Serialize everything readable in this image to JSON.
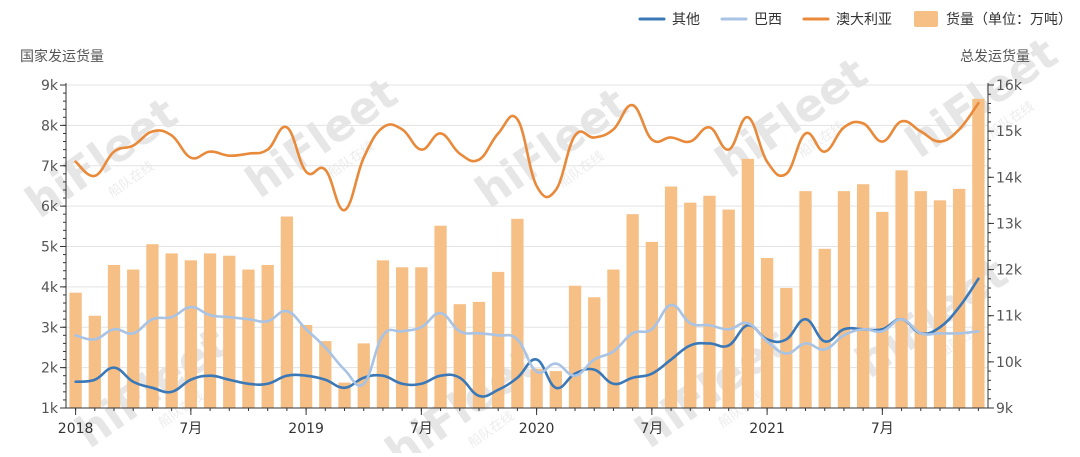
{
  "chart_data": {
    "type": "bar",
    "title": "",
    "left_axis": {
      "title": "国家发运货量",
      "range": [
        1000,
        9000
      ],
      "ticks": [
        1000,
        2000,
        3000,
        4000,
        5000,
        6000,
        7000,
        8000,
        9000
      ],
      "tick_labels": [
        "1k",
        "2k",
        "3k",
        "4k",
        "5k",
        "6k",
        "7k",
        "8k",
        "9k"
      ]
    },
    "right_axis": {
      "title": "总发运货量",
      "range": [
        9000,
        16000
      ],
      "ticks": [
        9000,
        10000,
        11000,
        12000,
        13000,
        14000,
        15000,
        16000
      ],
      "tick_labels": [
        "9k",
        "10k",
        "11k",
        "12k",
        "13k",
        "14k",
        "15k",
        "16k"
      ]
    },
    "x_axis": {
      "months": [
        "2018-01",
        "2018-02",
        "2018-03",
        "2018-04",
        "2018-05",
        "2018-06",
        "2018-07",
        "2018-08",
        "2018-09",
        "2018-10",
        "2018-11",
        "2018-12",
        "2019-01",
        "2019-02",
        "2019-03",
        "2019-04",
        "2019-05",
        "2019-06",
        "2019-07",
        "2019-08",
        "2019-09",
        "2019-10",
        "2019-11",
        "2019-12",
        "2020-01",
        "2020-02",
        "2020-03",
        "2020-04",
        "2020-05",
        "2020-06",
        "2020-07",
        "2020-08",
        "2020-09",
        "2020-10",
        "2020-11",
        "2020-12",
        "2021-01",
        "2021-02",
        "2021-03",
        "2021-04",
        "2021-05",
        "2021-06",
        "2021-07",
        "2021-08",
        "2021-09",
        "2021-10",
        "2021-11",
        "2021-12"
      ],
      "tick_labels": [
        {
          "month": "2018-01",
          "label": "2018"
        },
        {
          "month": "2018-07",
          "label": "7月"
        },
        {
          "month": "2019-01",
          "label": "2019"
        },
        {
          "month": "2019-07",
          "label": "7月"
        },
        {
          "month": "2020-01",
          "label": "2020"
        },
        {
          "month": "2020-07",
          "label": "7月"
        },
        {
          "month": "2021-01",
          "label": "2021"
        },
        {
          "month": "2021-07",
          "label": "7月"
        }
      ]
    },
    "bar_series": {
      "name": "货量（单位：万吨）",
      "axis": "right",
      "color": "#f5bf85",
      "values": [
        11500,
        11000,
        12100,
        12000,
        12550,
        12350,
        12200,
        12350,
        12300,
        12000,
        12100,
        13150,
        10800,
        10450,
        9550,
        10400,
        12200,
        12050,
        12050,
        12950,
        11250,
        11300,
        11950,
        13100,
        9850,
        9800,
        11650,
        11400,
        12000,
        13200,
        12600,
        13800,
        13450,
        13600,
        13300,
        14400,
        12250,
        11600,
        13700,
        12450,
        13700,
        13850,
        13250,
        14150,
        13700,
        13500,
        13750,
        15700
      ]
    },
    "line_series": [
      {
        "name": "其他",
        "axis": "left",
        "color": "#3a78b8",
        "values": [
          1650,
          1700,
          2000,
          1650,
          1500,
          1400,
          1700,
          1800,
          1700,
          1600,
          1600,
          1800,
          1800,
          1700,
          1500,
          1750,
          1800,
          1600,
          1600,
          1800,
          1750,
          1300,
          1450,
          1750,
          2200,
          1500,
          1850,
          1950,
          1600,
          1750,
          1850,
          2200,
          2550,
          2600,
          2550,
          3050,
          2700,
          2700,
          3200,
          2650,
          2950,
          2950,
          2950,
          3200,
          2850,
          3000,
          3500,
          4200
        ]
      },
      {
        "name": "巴西",
        "axis": "left",
        "color": "#a9c3e4",
        "values": [
          2800,
          2700,
          2950,
          2850,
          3200,
          3250,
          3500,
          3300,
          3250,
          3200,
          3150,
          3400,
          2950,
          2500,
          1950,
          1600,
          2800,
          2900,
          3000,
          3350,
          2900,
          2850,
          2800,
          2700,
          1900,
          2100,
          1800,
          2200,
          2400,
          2850,
          2950,
          3550,
          3100,
          3050,
          2950,
          3100,
          2650,
          2350,
          2600,
          2450,
          2800,
          2950,
          2900,
          3200,
          2850,
          2850,
          2850,
          2900
        ]
      },
      {
        "name": "澳大利亚",
        "axis": "left",
        "color": "#e9893a",
        "values": [
          7100,
          6750,
          7350,
          7500,
          7850,
          7750,
          7200,
          7350,
          7250,
          7300,
          7400,
          7950,
          6850,
          6900,
          5900,
          7200,
          7950,
          7900,
          7400,
          7800,
          7300,
          7150,
          7800,
          8150,
          6500,
          6400,
          7750,
          7700,
          7900,
          8500,
          7650,
          7700,
          7600,
          7950,
          7400,
          8200,
          7100,
          6800,
          7800,
          7350,
          7950,
          8050,
          7600,
          8100,
          7850,
          7600,
          7900,
          8550
        ]
      }
    ],
    "legend": {
      "position": "top-right",
      "items": [
        {
          "label": "其他",
          "type": "line",
          "color": "#3a78b8"
        },
        {
          "label": "巴西",
          "type": "line",
          "color": "#a9c3e4"
        },
        {
          "label": "澳大利亚",
          "type": "line",
          "color": "#e9893a"
        },
        {
          "label": "货量（单位：万吨）",
          "type": "bar",
          "color": "#f5bf85"
        }
      ]
    },
    "grid": true
  },
  "watermark": {
    "text": "hiFleet",
    "subtext": "船队在线"
  }
}
